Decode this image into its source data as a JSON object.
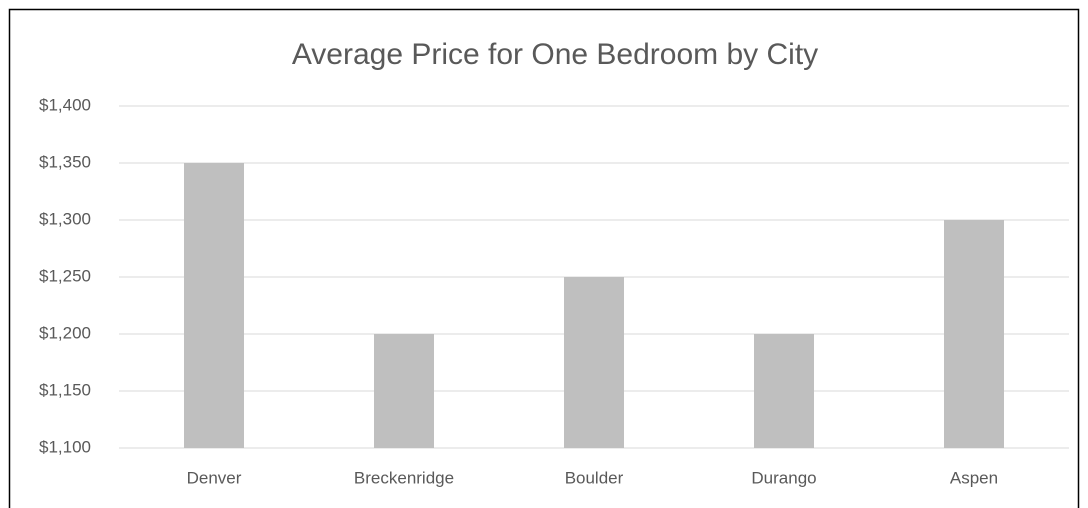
{
  "chart_data": {
    "type": "bar",
    "title": "Average Price for One Bedroom by City",
    "categories": [
      "Denver",
      "Breckenridge",
      "Boulder",
      "Durango",
      "Aspen"
    ],
    "values": [
      1350,
      1200,
      1250,
      1200,
      1300
    ],
    "color": "#bfbfbf",
    "ylim": [
      1100,
      1400
    ],
    "yticks": [
      {
        "value": 1100,
        "label": "$1,100"
      },
      {
        "value": 1150,
        "label": "$1,150"
      },
      {
        "value": 1200,
        "label": "$1,200"
      },
      {
        "value": 1250,
        "label": "$1,250"
      },
      {
        "value": 1300,
        "label": "$1,300"
      },
      {
        "value": 1350,
        "label": "$1,350"
      },
      {
        "value": 1400,
        "label": "$1,400"
      }
    ],
    "grid": true
  }
}
